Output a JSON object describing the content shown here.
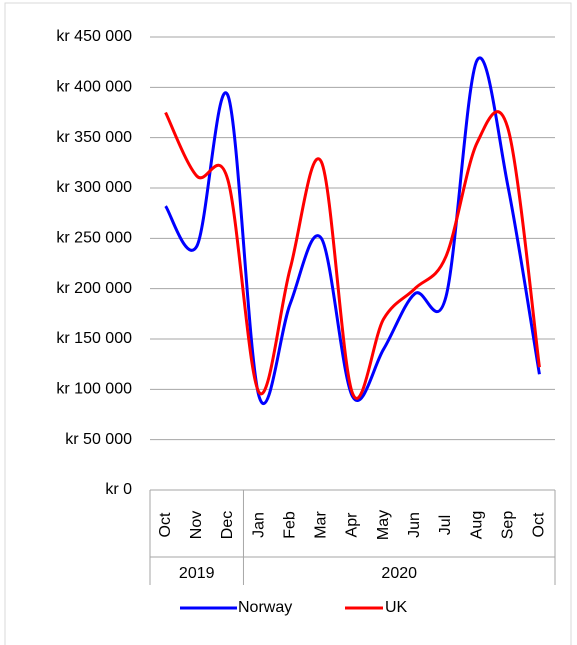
{
  "chart_data": {
    "type": "line",
    "category_groups": [
      {
        "label": "2019",
        "categories": [
          "Oct",
          "Nov",
          "Dec"
        ]
      },
      {
        "label": "2020",
        "categories": [
          "Jan",
          "Feb",
          "Mar",
          "Apr",
          "May",
          "Jun",
          "Jul",
          "Aug",
          "Sep",
          "Oct"
        ]
      }
    ],
    "series": [
      {
        "name": "Norway",
        "color": "#0000ff",
        "values": [
          282000,
          242000,
          392000,
          93000,
          185000,
          250000,
          93000,
          140000,
          195000,
          192000,
          427000,
          300000,
          115000
        ]
      },
      {
        "name": "UK",
        "color": "#ff0000",
        "values": [
          375000,
          312000,
          308000,
          97000,
          220000,
          326000,
          96000,
          170000,
          200000,
          232000,
          345000,
          358000,
          122000
        ]
      }
    ],
    "smooth": true,
    "ylim": [
      0,
      450000
    ],
    "yticks": [
      {
        "value": 0,
        "label": "kr 0"
      },
      {
        "value": 50000,
        "label": "kr 50 000"
      },
      {
        "value": 100000,
        "label": "kr 100 000"
      },
      {
        "value": 150000,
        "label": "kr 150 000"
      },
      {
        "value": 200000,
        "label": "kr 200 000"
      },
      {
        "value": 250000,
        "label": "kr 250 000"
      },
      {
        "value": 300000,
        "label": "kr 300 000"
      },
      {
        "value": 350000,
        "label": "kr 350 000"
      },
      {
        "value": 400000,
        "label": "kr 400 000"
      },
      {
        "value": 450000,
        "label": "kr 450 000"
      }
    ],
    "grid": true,
    "legend": "bottom"
  }
}
